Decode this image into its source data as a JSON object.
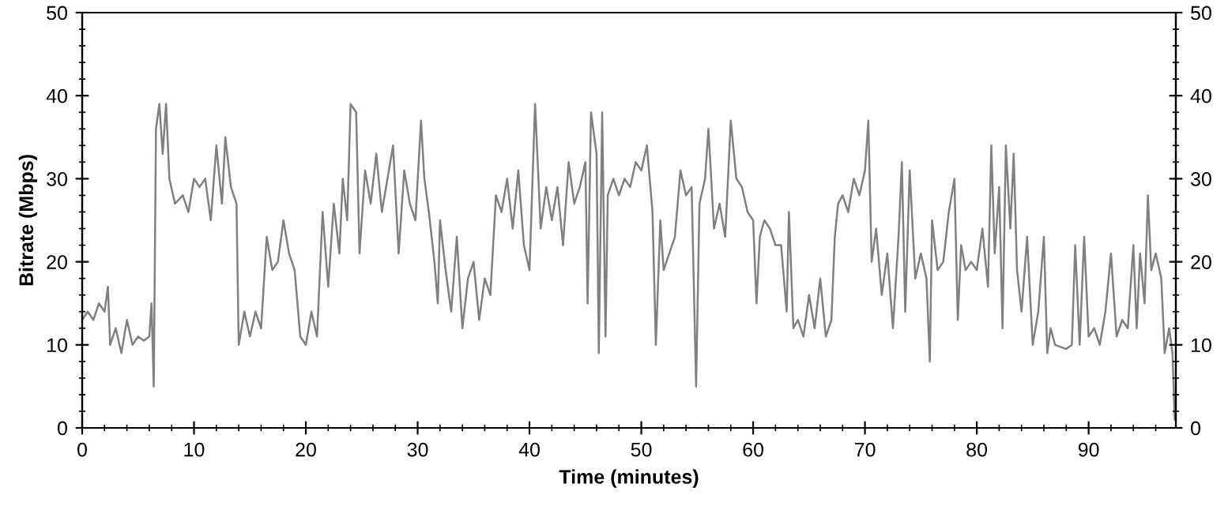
{
  "chart_data": {
    "type": "line",
    "xlabel": "Time (minutes)",
    "ylabel": "Bitrate (Mbps)",
    "x": [
      0,
      0.5,
      1,
      1.5,
      2,
      2.3,
      2.5,
      3,
      3.5,
      4,
      4.5,
      5,
      5.5,
      6,
      6.2,
      6.4,
      6.6,
      6.9,
      7.2,
      7.5,
      7.8,
      8.3,
      9,
      9.5,
      10,
      10.5,
      11,
      11.5,
      12,
      12.5,
      12.8,
      13.3,
      13.8,
      14,
      14.5,
      15,
      15.5,
      16,
      16.5,
      17,
      17.5,
      18,
      18.5,
      19,
      19.5,
      20,
      20.5,
      21,
      21.5,
      22,
      22.5,
      23,
      23.3,
      23.7,
      24,
      24.5,
      24.8,
      25.3,
      25.8,
      26.3,
      26.8,
      27.3,
      27.8,
      28.3,
      28.8,
      29.3,
      29.8,
      30.3,
      30.6,
      31,
      31.5,
      31.8,
      32,
      32.5,
      33,
      33.5,
      34,
      34.5,
      35,
      35.5,
      36,
      36.5,
      37,
      37.5,
      38,
      38.5,
      39,
      39.5,
      40,
      40.5,
      41,
      41.5,
      42,
      42.5,
      43,
      43.5,
      44,
      44.5,
      45,
      45.2,
      45.5,
      46,
      46.2,
      46.5,
      46.8,
      47,
      47.5,
      48,
      48.5,
      49,
      49.5,
      50,
      50.5,
      51,
      51.3,
      51.7,
      52,
      52.5,
      53,
      53.5,
      54,
      54.5,
      54.9,
      55.2,
      55.7,
      56,
      56.5,
      57,
      57.5,
      58,
      58.5,
      59,
      59.5,
      60,
      60.3,
      60.6,
      61,
      61.5,
      62,
      62.5,
      63,
      63.2,
      63.6,
      64,
      64.5,
      65,
      65.5,
      66,
      66.5,
      67,
      67.3,
      67.6,
      68,
      68.5,
      69,
      69.5,
      70,
      70.3,
      70.6,
      71,
      71.5,
      72,
      72.5,
      73,
      73.3,
      73.6,
      74,
      74.5,
      75,
      75.5,
      75.8,
      76,
      76.5,
      77,
      77.5,
      78,
      78.3,
      78.6,
      79,
      79.5,
      80,
      80.5,
      81,
      81.3,
      81.6,
      82,
      82.3,
      82.6,
      83,
      83.3,
      83.6,
      84,
      84.5,
      85,
      85.5,
      86,
      86.3,
      86.6,
      87,
      88,
      88.5,
      88.8,
      89.2,
      89.6,
      90,
      90.5,
      91,
      91.5,
      92,
      92.5,
      93,
      93.5,
      94,
      94.3,
      94.6,
      95,
      95.3,
      95.6,
      96,
      96.5,
      96.8,
      97.2,
      97.5,
      97.7
    ],
    "series": [
      {
        "color": "#808080",
        "values": [
          13,
          14,
          13,
          15,
          14,
          17,
          10,
          12,
          9,
          13,
          10,
          11,
          10.5,
          11,
          15,
          5,
          36,
          39,
          33,
          39,
          30,
          27,
          28,
          26,
          30,
          29,
          30,
          25,
          34,
          27,
          35,
          29,
          27,
          10,
          14,
          11,
          14,
          12,
          23,
          19,
          20,
          25,
          21,
          19,
          11,
          10,
          14,
          11,
          26,
          17,
          27,
          21,
          30,
          25,
          39,
          38,
          21,
          31,
          27,
          33,
          26,
          30,
          34,
          21,
          31,
          27,
          25,
          37,
          30,
          26,
          20,
          15,
          25,
          19,
          14,
          23,
          12,
          18,
          20,
          13,
          18,
          16,
          28,
          26,
          30,
          24,
          31,
          22,
          19,
          39,
          24,
          29,
          25,
          29,
          22,
          32,
          27,
          29,
          32,
          15,
          38,
          33,
          9,
          38,
          11,
          28,
          30,
          28,
          30,
          29,
          32,
          31,
          34,
          26,
          10,
          25,
          19,
          21,
          23,
          31,
          28,
          29,
          5,
          27,
          30,
          36,
          24,
          27,
          23,
          37,
          30,
          29,
          26,
          25,
          15,
          23,
          25,
          24,
          22,
          22,
          14,
          26,
          12,
          13,
          11,
          16,
          12,
          18,
          11,
          13,
          23,
          27,
          28,
          26,
          30,
          28,
          31,
          37,
          20,
          24,
          16,
          21,
          12,
          23,
          32,
          14,
          31,
          18,
          21,
          18,
          8,
          25,
          19,
          20,
          26,
          30,
          13,
          22,
          19,
          20,
          19,
          24,
          17,
          34,
          21,
          29,
          12,
          34,
          24,
          33,
          19,
          14,
          23,
          10,
          14,
          23,
          9,
          12,
          10,
          9.5,
          10,
          22,
          10,
          23,
          11,
          12,
          10,
          14,
          21,
          11,
          13,
          12,
          22,
          12,
          21,
          15,
          28,
          19,
          21,
          18,
          9,
          12,
          9,
          1
        ]
      }
    ],
    "xlim": [
      0,
      97.8
    ],
    "xticks": [
      0,
      10,
      20,
      30,
      40,
      50,
      60,
      70,
      80,
      90
    ],
    "ylim": [
      0,
      50
    ],
    "yticks": [
      0,
      10,
      20,
      30,
      40,
      50
    ],
    "y2lim": [
      0,
      50
    ],
    "y2ticks": [
      0,
      10,
      20,
      30,
      40,
      50
    ],
    "grid": false,
    "marker": "none",
    "line_style": "solid"
  }
}
